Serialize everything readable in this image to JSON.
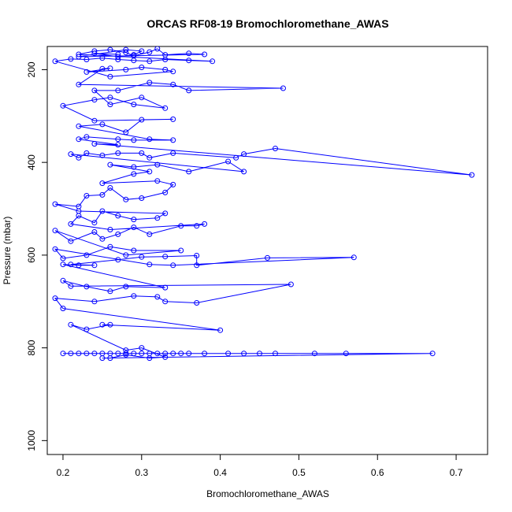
{
  "chart_data": {
    "type": "line",
    "title": "ORCAS RF08-19 Bromochloromethane_AWAS",
    "xlabel": "Bromochloromethane_AWAS",
    "ylabel": "Pressure (mbar)",
    "xlim": [
      0.18,
      0.74
    ],
    "ylim": [
      1030,
      150
    ],
    "y_reversed": true,
    "xticks": [
      0.2,
      0.3,
      0.4,
      0.5,
      0.6,
      0.7
    ],
    "xtick_labels": [
      "0.2",
      "0.3",
      "0.4",
      "0.5",
      "0.6",
      "0.7"
    ],
    "yticks": [
      200,
      400,
      600,
      800,
      1000
    ],
    "ytick_labels": [
      "200",
      "400",
      "600",
      "800",
      "1000"
    ],
    "grid": false,
    "legend": "none",
    "color": "#0000ff",
    "marker": "open-circle",
    "series": [
      {
        "points": [
          [
            0.2,
            812
          ],
          [
            0.21,
            812
          ],
          [
            0.22,
            812
          ],
          [
            0.23,
            812
          ],
          [
            0.24,
            812
          ],
          [
            0.25,
            812
          ],
          [
            0.26,
            812
          ],
          [
            0.27,
            812
          ],
          [
            0.28,
            812
          ],
          [
            0.29,
            812
          ],
          [
            0.3,
            812
          ],
          [
            0.31,
            812
          ],
          [
            0.32,
            812
          ],
          [
            0.33,
            812
          ],
          [
            0.34,
            812
          ],
          [
            0.35,
            812
          ],
          [
            0.36,
            812
          ],
          [
            0.38,
            812
          ],
          [
            0.41,
            812
          ],
          [
            0.43,
            812
          ],
          [
            0.45,
            812
          ],
          [
            0.47,
            812
          ],
          [
            0.52,
            812
          ],
          [
            0.56,
            812
          ],
          [
            0.67,
            812
          ],
          [
            0.25,
            822
          ],
          [
            0.26,
            822
          ],
          [
            0.28,
            815
          ],
          [
            0.31,
            822
          ],
          [
            0.33,
            820
          ],
          [
            0.3,
            800
          ],
          [
            0.28,
            805
          ],
          [
            0.21,
            750
          ],
          [
            0.23,
            760
          ],
          [
            0.26,
            750
          ],
          [
            0.25,
            750
          ],
          [
            0.4,
            762
          ],
          [
            0.2,
            715
          ],
          [
            0.19,
            693
          ],
          [
            0.24,
            700
          ],
          [
            0.29,
            688
          ],
          [
            0.32,
            690
          ],
          [
            0.33,
            700
          ],
          [
            0.37,
            703
          ],
          [
            0.49,
            663
          ],
          [
            0.21,
            667
          ],
          [
            0.2,
            655
          ],
          [
            0.23,
            668
          ],
          [
            0.26,
            678
          ],
          [
            0.28,
            668
          ],
          [
            0.33,
            670
          ],
          [
            0.2,
            620
          ],
          [
            0.22,
            622
          ],
          [
            0.24,
            622
          ],
          [
            0.21,
            620
          ],
          [
            0.27,
            610
          ],
          [
            0.3,
            604
          ],
          [
            0.33,
            603
          ],
          [
            0.37,
            601
          ],
          [
            0.37,
            622
          ],
          [
            0.46,
            606
          ],
          [
            0.57,
            605
          ],
          [
            0.34,
            622
          ],
          [
            0.31,
            620
          ],
          [
            0.19,
            587
          ],
          [
            0.2,
            607
          ],
          [
            0.23,
            600
          ],
          [
            0.26,
            582
          ],
          [
            0.29,
            590
          ],
          [
            0.35,
            590
          ],
          [
            0.28,
            600
          ],
          [
            0.19,
            547
          ],
          [
            0.21,
            570
          ],
          [
            0.24,
            550
          ],
          [
            0.25,
            565
          ],
          [
            0.27,
            555
          ],
          [
            0.29,
            540
          ],
          [
            0.31,
            555
          ],
          [
            0.35,
            537
          ],
          [
            0.37,
            537
          ],
          [
            0.38,
            533
          ],
          [
            0.26,
            545
          ],
          [
            0.21,
            533
          ],
          [
            0.22,
            515
          ],
          [
            0.24,
            530
          ],
          [
            0.25,
            505
          ],
          [
            0.27,
            515
          ],
          [
            0.29,
            523
          ],
          [
            0.32,
            520
          ],
          [
            0.33,
            510
          ],
          [
            0.22,
            505
          ],
          [
            0.19,
            490
          ],
          [
            0.22,
            495
          ],
          [
            0.23,
            472
          ],
          [
            0.25,
            470
          ],
          [
            0.26,
            455
          ],
          [
            0.28,
            480
          ],
          [
            0.3,
            477
          ],
          [
            0.33,
            465
          ],
          [
            0.34,
            448
          ],
          [
            0.32,
            440
          ],
          [
            0.25,
            445
          ],
          [
            0.29,
            425
          ],
          [
            0.31,
            420
          ],
          [
            0.26,
            405
          ],
          [
            0.29,
            410
          ],
          [
            0.32,
            405
          ],
          [
            0.36,
            420
          ],
          [
            0.41,
            398
          ],
          [
            0.43,
            420
          ],
          [
            0.21,
            382
          ],
          [
            0.22,
            390
          ],
          [
            0.23,
            380
          ],
          [
            0.25,
            385
          ],
          [
            0.27,
            380
          ],
          [
            0.3,
            380
          ],
          [
            0.31,
            390
          ],
          [
            0.34,
            380
          ],
          [
            0.42,
            390
          ],
          [
            0.43,
            382
          ],
          [
            0.47,
            370
          ],
          [
            0.72,
            427
          ],
          [
            0.24,
            360
          ],
          [
            0.27,
            362
          ],
          [
            0.22,
            350
          ],
          [
            0.23,
            345
          ],
          [
            0.27,
            350
          ],
          [
            0.29,
            352
          ],
          [
            0.34,
            352
          ],
          [
            0.31,
            350
          ],
          [
            0.22,
            322
          ],
          [
            0.25,
            318
          ],
          [
            0.28,
            335
          ],
          [
            0.3,
            308
          ],
          [
            0.34,
            307
          ],
          [
            0.24,
            310
          ],
          [
            0.2,
            278
          ],
          [
            0.24,
            265
          ],
          [
            0.26,
            260
          ],
          [
            0.29,
            275
          ],
          [
            0.33,
            283
          ],
          [
            0.3,
            260
          ],
          [
            0.26,
            275
          ],
          [
            0.24,
            245
          ],
          [
            0.27,
            245
          ],
          [
            0.31,
            228
          ],
          [
            0.34,
            232
          ],
          [
            0.36,
            245
          ],
          [
            0.48,
            240
          ],
          [
            0.22,
            232
          ],
          [
            0.25,
            198
          ],
          [
            0.26,
            197
          ],
          [
            0.23,
            205
          ],
          [
            0.28,
            200
          ],
          [
            0.3,
            195
          ],
          [
            0.33,
            200
          ],
          [
            0.34,
            204
          ],
          [
            0.26,
            215
          ],
          [
            0.19,
            182
          ],
          [
            0.21,
            177
          ],
          [
            0.23,
            178
          ],
          [
            0.25,
            175
          ],
          [
            0.27,
            178
          ],
          [
            0.29,
            180
          ],
          [
            0.31,
            182
          ],
          [
            0.33,
            178
          ],
          [
            0.36,
            180
          ],
          [
            0.39,
            182
          ],
          [
            0.22,
            167
          ],
          [
            0.24,
            160
          ],
          [
            0.26,
            157
          ],
          [
            0.28,
            163
          ],
          [
            0.29,
            170
          ],
          [
            0.31,
            162
          ],
          [
            0.32,
            155
          ],
          [
            0.33,
            168
          ],
          [
            0.36,
            165
          ],
          [
            0.38,
            167
          ],
          [
            0.22,
            172
          ],
          [
            0.28,
            157
          ],
          [
            0.3,
            160
          ],
          [
            0.29,
            168
          ],
          [
            0.27,
            172
          ],
          [
            0.24,
            165
          ],
          [
            0.27,
            167
          ]
        ]
      }
    ]
  }
}
